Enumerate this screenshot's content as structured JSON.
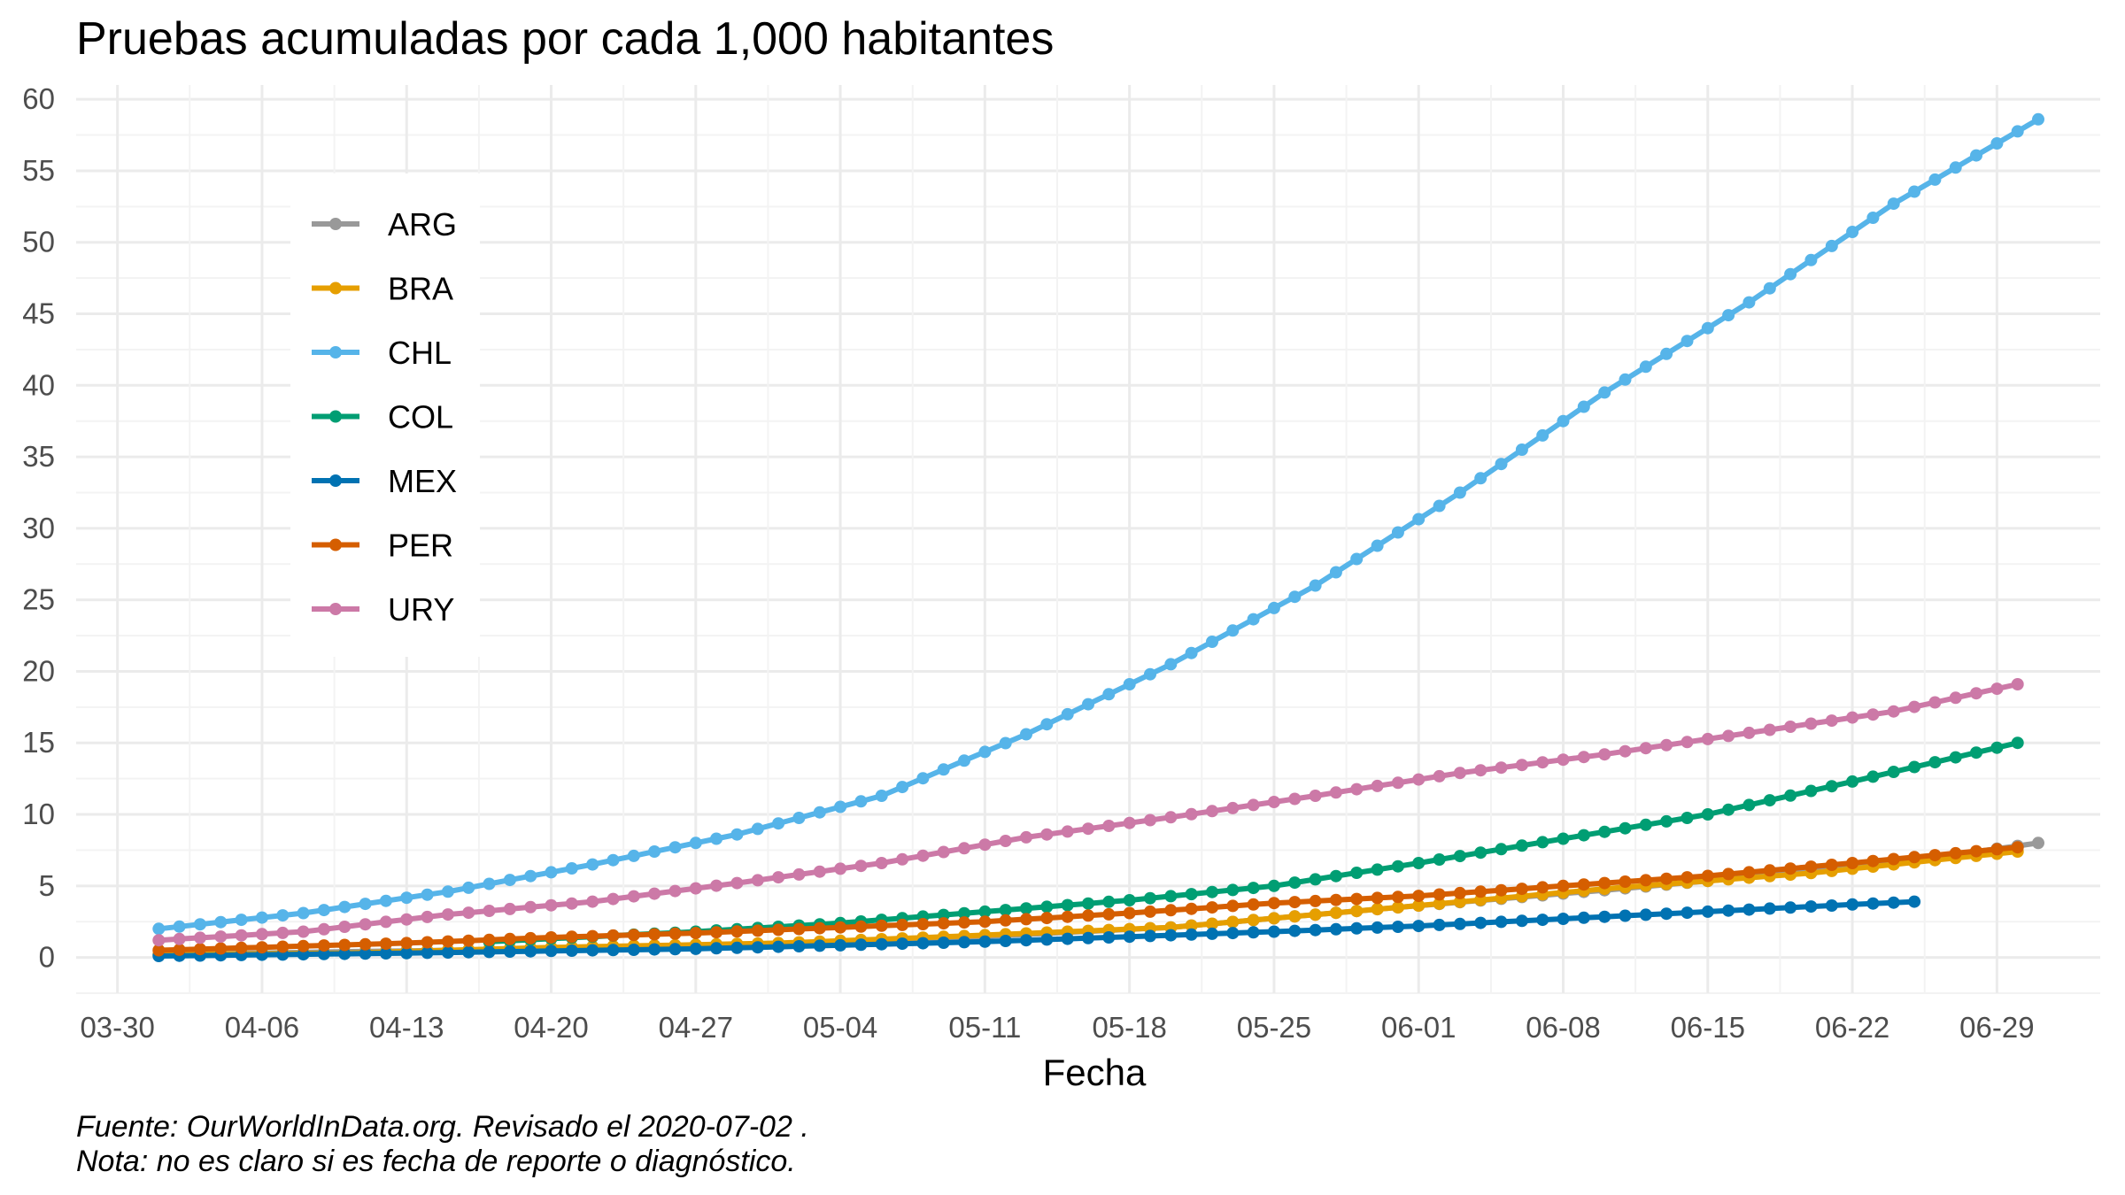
{
  "chart_data": {
    "type": "line",
    "title": "Pruebas acumuladas por cada 1,000 habitantes",
    "xlabel": "Fecha",
    "ylabel": "",
    "x_ticks": [
      "03-30",
      "04-06",
      "04-13",
      "04-20",
      "04-27",
      "05-04",
      "05-11",
      "05-18",
      "05-25",
      "06-01",
      "06-08",
      "06-15",
      "06-22",
      "06-29"
    ],
    "x_tick_dates": [
      "2020-03-30",
      "2020-04-06",
      "2020-04-13",
      "2020-04-20",
      "2020-04-27",
      "2020-05-04",
      "2020-05-11",
      "2020-05-18",
      "2020-05-25",
      "2020-06-01",
      "2020-06-08",
      "2020-06-15",
      "2020-06-22",
      "2020-06-29"
    ],
    "xlim": [
      "2020-03-28",
      "2020-07-04"
    ],
    "y_ticks": [
      0,
      5,
      10,
      15,
      20,
      25,
      30,
      35,
      40,
      45,
      50,
      55,
      60
    ],
    "ylim": [
      -2.5,
      61
    ],
    "grid": true,
    "legend_position": "left, inside plot",
    "series": [
      {
        "name": "ARG",
        "color": "#999999",
        "points": [
          [
            "2020-04-01",
            0.2
          ],
          [
            "2020-04-10",
            0.4
          ],
          [
            "2020-04-20",
            0.6
          ],
          [
            "2020-05-01",
            0.9
          ],
          [
            "2020-05-10",
            1.4
          ],
          [
            "2020-05-20",
            2.1
          ],
          [
            "2020-05-31",
            3.5
          ],
          [
            "2020-06-10",
            4.7
          ],
          [
            "2020-06-20",
            6.0
          ],
          [
            "2020-06-25",
            6.8
          ],
          [
            "2020-06-30",
            7.8
          ],
          [
            "2020-07-01",
            8.0
          ]
        ]
      },
      {
        "name": "BRA",
        "color": "#E69F00",
        "points": [
          [
            "2020-04-01",
            0.2
          ],
          [
            "2020-04-10",
            0.3
          ],
          [
            "2020-04-20",
            0.7
          ],
          [
            "2020-05-01",
            1.0
          ],
          [
            "2020-05-10",
            1.5
          ],
          [
            "2020-05-20",
            2.1
          ],
          [
            "2020-05-31",
            3.5
          ],
          [
            "2020-06-10",
            4.8
          ],
          [
            "2020-06-20",
            5.9
          ],
          [
            "2020-06-30",
            7.4
          ]
        ]
      },
      {
        "name": "CHL",
        "color": "#56B4E9",
        "points": [
          [
            "2020-04-01",
            2.0
          ],
          [
            "2020-04-08",
            3.1
          ],
          [
            "2020-04-15",
            4.6
          ],
          [
            "2020-04-22",
            6.5
          ],
          [
            "2020-04-29",
            8.6
          ],
          [
            "2020-05-06",
            11.3
          ],
          [
            "2020-05-13",
            15.6
          ],
          [
            "2020-05-20",
            20.5
          ],
          [
            "2020-05-27",
            26.0
          ],
          [
            "2020-06-03",
            32.5
          ],
          [
            "2020-06-10",
            39.5
          ],
          [
            "2020-06-17",
            45.8
          ],
          [
            "2020-06-24",
            52.7
          ],
          [
            "2020-07-01",
            58.6
          ]
        ]
      },
      {
        "name": "COL",
        "color": "#009E73",
        "points": [
          [
            "2020-04-17",
            1.1
          ],
          [
            "2020-04-27",
            1.8
          ],
          [
            "2020-05-04",
            2.4
          ],
          [
            "2020-05-11",
            3.2
          ],
          [
            "2020-05-18",
            4.0
          ],
          [
            "2020-05-25",
            5.0
          ],
          [
            "2020-06-01",
            6.6
          ],
          [
            "2020-06-08",
            8.3
          ],
          [
            "2020-06-15",
            10.0
          ],
          [
            "2020-06-22",
            12.3
          ],
          [
            "2020-06-30",
            15.0
          ]
        ]
      },
      {
        "name": "MEX",
        "color": "#0072B2",
        "points": [
          [
            "2020-04-01",
            0.1
          ],
          [
            "2020-04-13",
            0.3
          ],
          [
            "2020-04-27",
            0.6
          ],
          [
            "2020-05-11",
            1.1
          ],
          [
            "2020-05-25",
            1.8
          ],
          [
            "2020-06-01",
            2.2
          ],
          [
            "2020-06-08",
            2.7
          ],
          [
            "2020-06-15",
            3.2
          ],
          [
            "2020-06-22",
            3.7
          ],
          [
            "2020-06-25",
            3.9
          ]
        ]
      },
      {
        "name": "PER",
        "color": "#D55E00",
        "points": [
          [
            "2020-04-01",
            0.5
          ],
          [
            "2020-04-13",
            1.0
          ],
          [
            "2020-04-20",
            1.4
          ],
          [
            "2020-04-27",
            1.7
          ],
          [
            "2020-05-04",
            2.1
          ],
          [
            "2020-05-11",
            2.5
          ],
          [
            "2020-05-18",
            3.1
          ],
          [
            "2020-05-25",
            3.8
          ],
          [
            "2020-06-01",
            4.3
          ],
          [
            "2020-06-08",
            5.0
          ],
          [
            "2020-06-15",
            5.7
          ],
          [
            "2020-06-22",
            6.6
          ],
          [
            "2020-06-30",
            7.7
          ]
        ]
      },
      {
        "name": "URY",
        "color": "#CC79A7",
        "points": [
          [
            "2020-04-01",
            1.2
          ],
          [
            "2020-04-08",
            1.8
          ],
          [
            "2020-04-15",
            3.0
          ],
          [
            "2020-04-22",
            3.9
          ],
          [
            "2020-04-29",
            5.2
          ],
          [
            "2020-05-06",
            6.6
          ],
          [
            "2020-05-13",
            8.4
          ],
          [
            "2020-05-20",
            9.8
          ],
          [
            "2020-05-27",
            11.3
          ],
          [
            "2020-06-03",
            12.9
          ],
          [
            "2020-06-10",
            14.2
          ],
          [
            "2020-06-17",
            15.7
          ],
          [
            "2020-06-24",
            17.2
          ],
          [
            "2020-06-30",
            19.1
          ]
        ]
      }
    ]
  },
  "caption": {
    "line1": "Fuente: OurWorldInData.org. Revisado el 2020-07-02 .",
    "line2": "Nota: no es claro si es fecha de reporte o diagnóstico."
  }
}
